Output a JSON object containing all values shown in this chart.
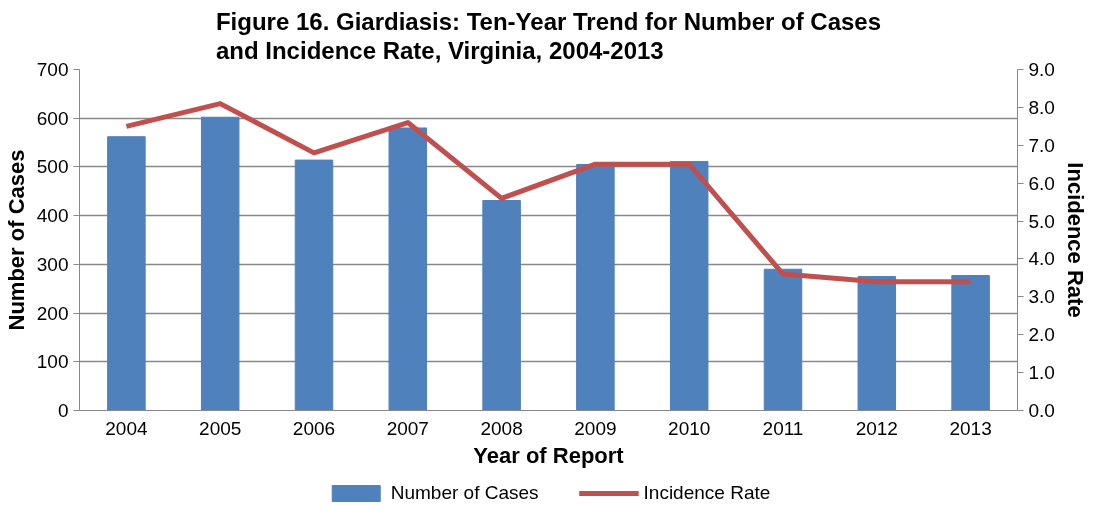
{
  "chart_data": {
    "type": "bar",
    "title": "Figure 16. Giardiasis: Ten-Year Trend for Number of Cases\nand Incidence Rate, Virginia, 2004-2013",
    "xlabel": "Year of Report",
    "ylabel": "Number of Cases",
    "y2label": "Incidence Rate",
    "categories": [
      "2004",
      "2005",
      "2006",
      "2007",
      "2008",
      "2009",
      "2010",
      "2011",
      "2012",
      "2013"
    ],
    "series": [
      {
        "name": "Number of Cases",
        "color": "#4f81bd",
        "values": [
          562,
          602,
          514,
          580,
          431,
          505,
          511,
          290,
          275,
          277
        ]
      },
      {
        "name": "Incidence Rate",
        "type": "line",
        "axis": "y2",
        "color": "#c0504d",
        "values": [
          7.5,
          8.1,
          6.8,
          7.6,
          5.6,
          6.5,
          6.5,
          3.6,
          3.4,
          3.4
        ]
      }
    ],
    "ylim": [
      0,
      700
    ],
    "yticks": [
      0,
      100,
      200,
      300,
      400,
      500,
      600,
      700
    ],
    "y2lim": [
      0,
      9
    ],
    "y2ticks": [
      {
        "value": 0,
        "label": "0.0"
      },
      {
        "value": 1,
        "label": "1.0"
      },
      {
        "value": 2,
        "label": "2.0"
      },
      {
        "value": 3,
        "label": "3.0"
      },
      {
        "value": 4,
        "label": "4.0"
      },
      {
        "value": 5,
        "label": "5.0"
      },
      {
        "value": 6,
        "label": "6.0"
      },
      {
        "value": 7,
        "label": "7.0"
      },
      {
        "value": 8,
        "label": "8.0"
      },
      {
        "value": 9,
        "label": "9.0"
      }
    ],
    "grid": "y",
    "legend": "bottom"
  }
}
